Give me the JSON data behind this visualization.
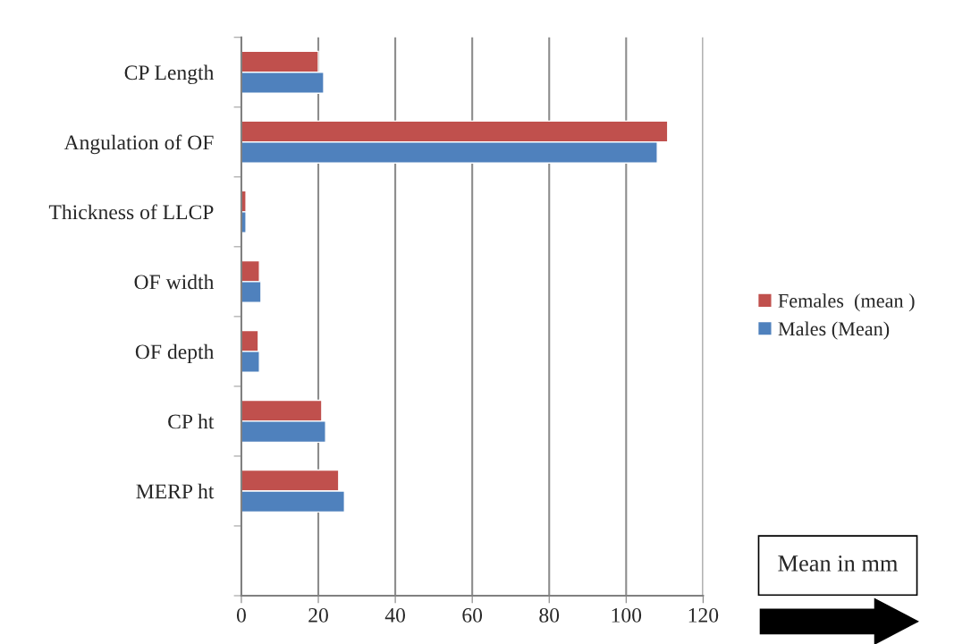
{
  "chart_data": {
    "type": "bar",
    "orientation": "horizontal",
    "categories": [
      "CP Length",
      "Angulation of OF",
      "Thickness of LLCP",
      "OF width",
      "OF depth",
      "CP ht",
      "MERP ht",
      null
    ],
    "series": [
      {
        "name": "Females  (mean )",
        "color": "#c0504d",
        "values": [
          20.0,
          110.8,
          1.2,
          4.7,
          4.4,
          20.9,
          25.3,
          null
        ]
      },
      {
        "name": "Males (Mean)",
        "color": "#4f81bd",
        "values": [
          21.4,
          108.1,
          1.2,
          5.1,
          4.7,
          21.9,
          26.8,
          null
        ]
      }
    ],
    "xlim": [
      0,
      120
    ],
    "xticks": [
      0,
      20,
      40,
      60,
      80,
      100,
      120
    ],
    "grid": "x",
    "legend": "right",
    "annotations": [
      "Mean in mm"
    ]
  }
}
